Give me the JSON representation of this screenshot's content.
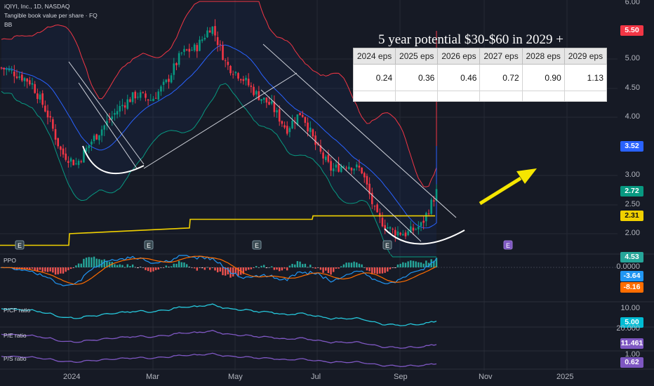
{
  "header": {
    "symbol_line": "iQIYI, Inc., 1D, NASDAQ",
    "indicator_1": "Tangible book value per share · FQ",
    "indicator_2": "BB"
  },
  "annotation": {
    "headline": "5 year potential  $30-$60 in 2029 +",
    "eps_headers": [
      "2024 eps",
      "2025 eps",
      "2026 eps",
      "2027 eps",
      "2028 eps",
      "2029 eps"
    ],
    "eps_values": [
      "0.24",
      "0.36",
      "0.46",
      "0.72",
      "0.90",
      "1.13"
    ]
  },
  "price_axis": {
    "ticks": [
      "6.00",
      "5.00",
      "4.50",
      "4.00",
      "3.00",
      "2.50",
      "2.00"
    ],
    "badges": [
      {
        "label": "5.50",
        "value": 5.5,
        "color": "#f23645"
      },
      {
        "label": "3.52",
        "value": 3.52,
        "color": "#2962ff"
      },
      {
        "label": "2.72",
        "value": 2.72,
        "color": "#089981"
      },
      {
        "label": "2.31",
        "value": 2.31,
        "color": "#f0d000"
      }
    ]
  },
  "panes": {
    "ppo": {
      "label": "PPO",
      "ticks": [
        "0.0000"
      ],
      "badges": [
        {
          "label": "4.53",
          "color": "#26a69a"
        },
        {
          "label": "-3.64",
          "color": "#2196f3"
        },
        {
          "label": "-8.16",
          "color": "#ff6d00"
        }
      ]
    },
    "pcf": {
      "label": "P/CF ratio",
      "ticks": [
        "10.00"
      ],
      "badges": [
        {
          "label": "5.00",
          "color": "#00bcd4"
        }
      ]
    },
    "pe": {
      "label": "P/E ratio",
      "ticks": [
        "20.000"
      ],
      "badges": [
        {
          "label": "11.461",
          "color": "#7e57c2"
        }
      ]
    },
    "ps": {
      "label": "P/S ratio",
      "ticks": [
        "1.00"
      ],
      "badges": [
        {
          "label": "0.62",
          "color": "#7e57c2"
        }
      ]
    }
  },
  "time_axis": [
    "2024",
    "Mar",
    "May",
    "Jul",
    "Sep",
    "Nov",
    "2025"
  ],
  "earnings_markers": [
    "E",
    "E",
    "E",
    "E",
    "E"
  ],
  "colors": {
    "up": "#089981",
    "down": "#f23645",
    "tbv": "#f0d000",
    "bb_upper": "#f23645",
    "bb_basis": "#2962ff",
    "bb_lower": "#089981",
    "arrow": "#f5e600"
  },
  "chart_data": {
    "type": "line",
    "title": "iQIYI, Inc., 1D, NASDAQ",
    "ylim": [
      1.55,
      6.0
    ],
    "x": [
      "2023-12",
      "2024-01",
      "2024-02",
      "2024-03",
      "2024-04",
      "2024-05",
      "2024-06",
      "2024-07",
      "2024-08",
      "2024-09",
      "2024-09-end"
    ],
    "series": [
      {
        "name": "Tangible book value per share · FQ",
        "values": [
          1.8,
          1.8,
          2.0,
          2.1,
          2.1,
          2.25,
          2.25,
          2.31,
          2.31,
          2.31,
          2.31
        ]
      }
    ],
    "price_path": [
      4.85,
      4.75,
      4.6,
      4.1,
      3.4,
      3.2,
      3.6,
      3.9,
      4.2,
      4.4,
      4.3,
      4.6,
      5.1,
      5.2,
      5.6,
      4.9,
      4.7,
      4.4,
      4.2,
      3.8,
      4.1,
      3.5,
      3.1,
      3.2,
      3.1,
      2.3,
      2.05,
      2.0,
      2.15,
      2.72
    ],
    "eps": {
      "2024": 0.24,
      "2025": 0.36,
      "2026": 0.46,
      "2027": 0.72,
      "2028": 0.9,
      "2029": 1.13
    },
    "last_price": 2.72
  }
}
